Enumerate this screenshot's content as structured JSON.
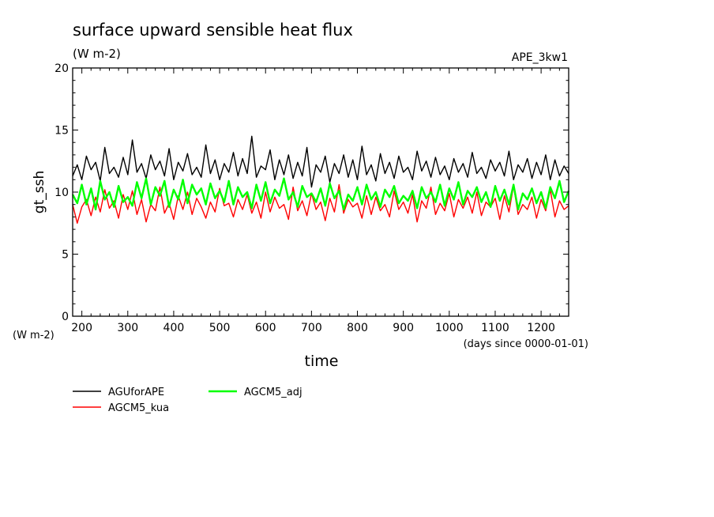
{
  "chart_data": {
    "type": "line",
    "title": "surface upward sensible heat flux",
    "subtitle": "(W m-2)",
    "label_right": "APE_3kw1",
    "xlabel": "time",
    "x_units": "(days since 0000-01-01)",
    "ylabel": "gt_ssh",
    "y_units": "(W m-2)",
    "xlim": [
      180,
      1260
    ],
    "ylim": [
      0,
      20
    ],
    "xticks": [
      200,
      300,
      400,
      500,
      600,
      700,
      800,
      900,
      1000,
      1100,
      1200
    ],
    "yticks": [
      0,
      5,
      10,
      15,
      20
    ],
    "grid": false,
    "legend_position": "below",
    "x": [
      180,
      190,
      200,
      210,
      220,
      230,
      240,
      250,
      260,
      270,
      280,
      290,
      300,
      310,
      320,
      330,
      340,
      350,
      360,
      370,
      380,
      390,
      400,
      410,
      420,
      430,
      440,
      450,
      460,
      470,
      480,
      490,
      500,
      510,
      520,
      530,
      540,
      550,
      560,
      570,
      580,
      590,
      600,
      610,
      620,
      630,
      640,
      650,
      660,
      670,
      680,
      690,
      700,
      710,
      720,
      730,
      740,
      750,
      760,
      770,
      780,
      790,
      800,
      810,
      820,
      830,
      840,
      850,
      860,
      870,
      880,
      890,
      900,
      910,
      920,
      930,
      940,
      950,
      960,
      970,
      980,
      990,
      1000,
      1010,
      1020,
      1030,
      1040,
      1050,
      1060,
      1070,
      1080,
      1090,
      1100,
      1110,
      1120,
      1130,
      1140,
      1150,
      1160,
      1170,
      1180,
      1190,
      1200,
      1210,
      1220,
      1230,
      1240,
      1250,
      1260
    ],
    "series": [
      {
        "name": "AGUforAPE",
        "color": "#000000",
        "values": [
          11.3,
          12.2,
          11.0,
          12.9,
          11.8,
          12.4,
          10.9,
          13.6,
          11.5,
          12.0,
          11.2,
          12.8,
          11.4,
          14.2,
          11.6,
          12.3,
          11.1,
          13.0,
          11.8,
          12.5,
          11.3,
          13.5,
          11.0,
          12.4,
          11.7,
          13.1,
          11.4,
          12.0,
          11.2,
          13.8,
          11.5,
          12.6,
          11.0,
          12.3,
          11.6,
          13.2,
          11.3,
          12.7,
          11.5,
          14.5,
          11.2,
          12.1,
          11.8,
          13.4,
          11.0,
          12.6,
          11.4,
          13.0,
          11.1,
          12.4,
          11.3,
          13.6,
          10.4,
          12.2,
          11.6,
          12.9,
          10.8,
          12.3,
          11.5,
          13.0,
          11.2,
          12.6,
          11.0,
          13.7,
          11.4,
          12.2,
          10.9,
          13.1,
          11.5,
          12.4,
          11.1,
          12.9,
          11.6,
          12.0,
          11.0,
          13.3,
          11.7,
          12.5,
          11.2,
          12.8,
          11.4,
          12.1,
          11.0,
          12.7,
          11.6,
          12.3,
          11.2,
          13.2,
          11.5,
          12.0,
          11.1,
          12.6,
          11.7,
          12.4,
          11.3,
          13.3,
          11.0,
          12.2,
          11.6,
          12.7,
          11.1,
          12.4,
          11.4,
          13.0,
          11.0,
          12.6,
          11.3,
          12.1,
          11.5
        ]
      },
      {
        "name": "AGCM5_kua",
        "color": "#ff0000",
        "values": [
          9.0,
          7.5,
          8.8,
          9.4,
          8.1,
          9.6,
          8.4,
          10.2,
          8.7,
          9.3,
          7.9,
          9.8,
          8.6,
          10.1,
          8.2,
          9.4,
          7.6,
          9.0,
          8.5,
          10.4,
          8.3,
          9.1,
          7.8,
          9.7,
          8.6,
          10.0,
          8.2,
          9.5,
          8.8,
          7.9,
          9.2,
          8.4,
          10.3,
          8.9,
          9.1,
          8.0,
          9.4,
          8.6,
          9.8,
          8.3,
          9.2,
          7.9,
          10.0,
          8.4,
          9.6,
          8.7,
          9.0,
          7.8,
          10.4,
          8.5,
          9.3,
          8.1,
          9.9,
          8.6,
          9.2,
          7.7,
          9.5,
          8.4,
          10.6,
          8.3,
          9.4,
          8.8,
          9.1,
          7.9,
          9.7,
          8.2,
          9.6,
          8.5,
          9.0,
          8.0,
          10.1,
          8.6,
          9.2,
          8.3,
          9.8,
          7.6,
          9.3,
          8.7,
          10.4,
          8.2,
          9.1,
          8.5,
          9.9,
          8.0,
          9.4,
          8.7,
          9.6,
          8.3,
          10.0,
          8.1,
          9.2,
          8.8,
          9.5,
          7.8,
          9.7,
          8.4,
          10.5,
          8.2,
          9.0,
          8.6,
          9.6,
          7.9,
          9.4,
          8.5,
          10.2,
          8.0,
          9.3,
          8.6,
          8.9
        ]
      },
      {
        "name": "AGCM5_adj",
        "color": "#00ff00",
        "values": [
          9.8,
          9.1,
          10.6,
          9.0,
          10.3,
          8.6,
          10.9,
          9.4,
          10.0,
          8.8,
          10.5,
          9.2,
          9.6,
          8.9,
          10.8,
          9.5,
          11.1,
          9.0,
          10.4,
          9.7,
          10.9,
          8.8,
          10.2,
          9.4,
          11.0,
          9.1,
          10.6,
          9.8,
          10.3,
          9.0,
          10.7,
          9.5,
          10.1,
          9.2,
          10.9,
          9.0,
          10.4,
          9.6,
          10.0,
          8.7,
          10.6,
          9.3,
          10.8,
          9.1,
          10.2,
          9.7,
          11.1,
          9.4,
          10.0,
          8.8,
          10.5,
          9.6,
          9.9,
          9.2,
          10.3,
          8.9,
          10.7,
          9.5,
          10.1,
          8.6,
          9.8,
          9.3,
          10.4,
          9.0,
          10.6,
          9.4,
          10.0,
          8.8,
          10.2,
          9.6,
          10.5,
          9.1,
          9.7,
          9.3,
          10.1,
          8.7,
          10.4,
          9.5,
          10.0,
          9.2,
          10.6,
          8.9,
          10.3,
          9.4,
          10.8,
          9.0,
          10.1,
          9.6,
          10.4,
          9.2,
          10.0,
          8.8,
          10.5,
          9.3,
          10.2,
          9.0,
          10.6,
          8.6,
          9.9,
          9.4,
          10.3,
          9.1,
          10.0,
          8.7,
          10.4,
          9.5,
          10.9,
          9.2,
          10.1
        ]
      }
    ]
  }
}
